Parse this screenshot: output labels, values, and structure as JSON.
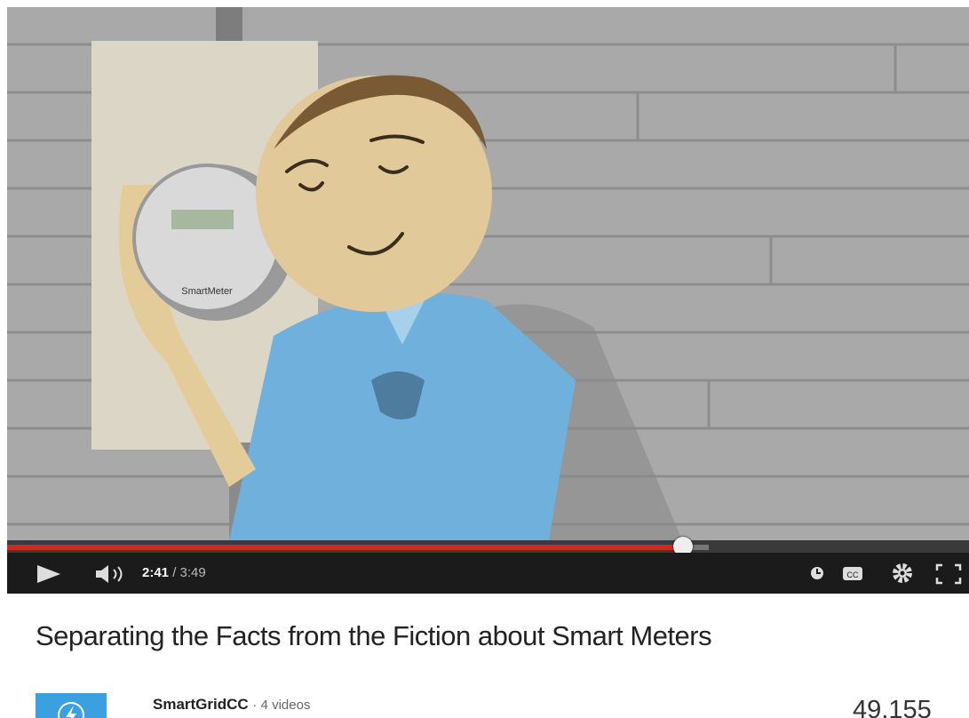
{
  "player": {
    "current_time": "2:41",
    "duration": "3:49",
    "time_separator": "/",
    "meter_label": "SmartMeter"
  },
  "video": {
    "title": "Separating the Facts from the Fiction about Smart Meters"
  },
  "channel": {
    "name": "SmartGridCC",
    "videos": "· 4 videos",
    "views": "49,155"
  }
}
